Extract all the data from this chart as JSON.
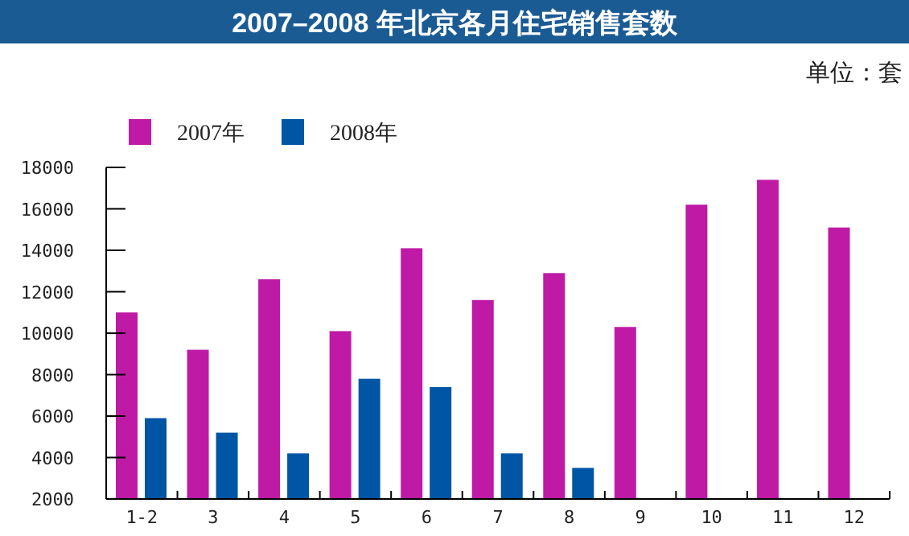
{
  "chart_data": {
    "type": "bar",
    "title": "2007–2008 年北京各月住宅销售套数",
    "annotations": [
      "单位：套"
    ],
    "categories": [
      "1-2",
      "3",
      "4",
      "5",
      "6",
      "7",
      "8",
      "9",
      "10",
      "11",
      "12"
    ],
    "series": [
      {
        "name": "2007年",
        "color": "#bf1aa5",
        "values": [
          11000,
          9200,
          12600,
          10100,
          14100,
          11600,
          12900,
          10300,
          16200,
          17400,
          15100
        ]
      },
      {
        "name": "2008年",
        "color": "#0055a5",
        "values": [
          5900,
          5200,
          4200,
          7800,
          7400,
          4200,
          3500,
          null,
          null,
          null,
          null
        ]
      }
    ],
    "ylim": [
      2000,
      18000
    ],
    "yticks": [
      2000,
      4000,
      6000,
      8000,
      10000,
      12000,
      14000,
      16000,
      18000
    ],
    "grid": false,
    "legend": "top left"
  }
}
